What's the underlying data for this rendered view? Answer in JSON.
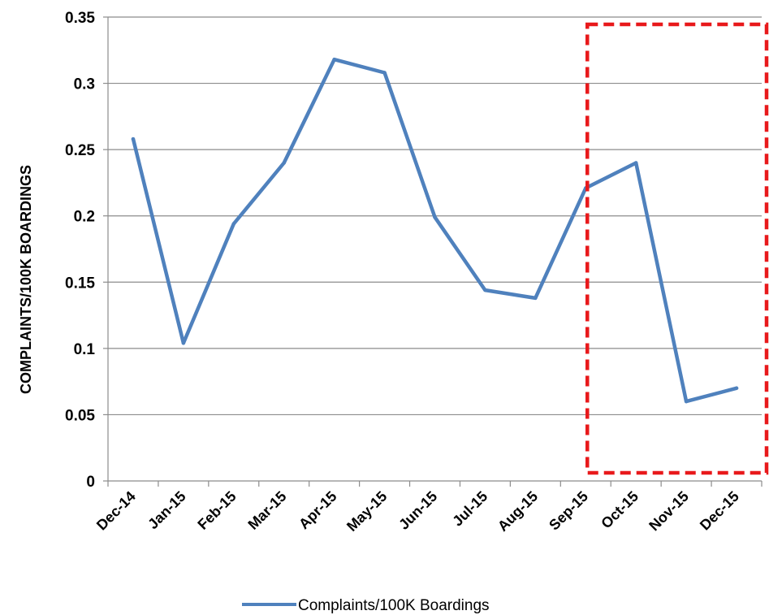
{
  "chart_data": {
    "type": "line",
    "title": "",
    "xlabel": "",
    "ylabel": "COMPLAINTS/100K BOARDINGS",
    "categories": [
      "Dec-14",
      "Jan-15",
      "Feb-15",
      "Mar-15",
      "Apr-15",
      "May-15",
      "Jun-15",
      "Jul-15",
      "Aug-15",
      "Sep-15",
      "Oct-15",
      "Nov-15",
      "Dec-15"
    ],
    "series": [
      {
        "name": "Complaints/100K Boardings",
        "color": "#4f81bd",
        "values": [
          0.258,
          0.104,
          0.194,
          0.24,
          0.318,
          0.308,
          0.199,
          0.144,
          0.138,
          0.221,
          0.24,
          0.06,
          0.07
        ]
      }
    ],
    "ylim": [
      0,
      0.35
    ],
    "yticks": [
      "0",
      "0.05",
      "0.1",
      "0.15",
      "0.2",
      "0.25",
      "0.3",
      "0.35"
    ],
    "grid": "horizontal",
    "legend": "bottom",
    "highlight": {
      "style": "dashed",
      "color": "#e8191b",
      "from_category": "Sep-15",
      "to_category": "Dec-15"
    }
  }
}
